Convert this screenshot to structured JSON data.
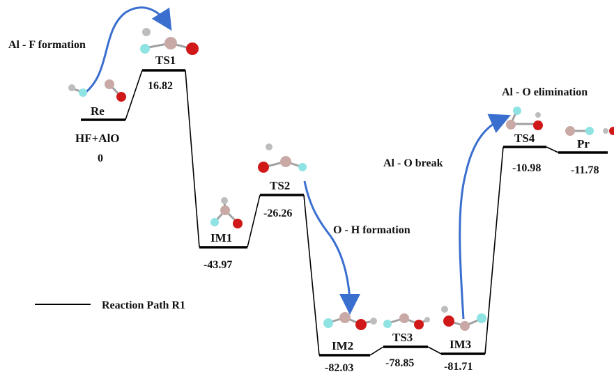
{
  "colors": {
    "path": "#000000",
    "arrow": "#3a6fcf",
    "al_atom": "#c9a9a6",
    "f_atom": "#8fe3e3",
    "o_atom": "#d01818",
    "h_atom": "#bdbdbd",
    "bond": "#a0a0a0"
  },
  "states": [
    {
      "name": "Re",
      "energy": "0",
      "sublabel": "HF+AlO"
    },
    {
      "name": "TS1",
      "energy": "16.82"
    },
    {
      "name": "IM1",
      "energy": "-43.97"
    },
    {
      "name": "TS2",
      "energy": "-26.26"
    },
    {
      "name": "IM2",
      "energy": "-82.03"
    },
    {
      "name": "TS3",
      "energy": "-78.85"
    },
    {
      "name": "IM3",
      "energy": "-81.71"
    },
    {
      "name": "TS4",
      "energy": "-10.98"
    },
    {
      "name": "Pr",
      "energy": "-11.78"
    }
  ],
  "annotations": {
    "al_f_formation": "Al - F formation",
    "o_h_formation": "O - H formation",
    "al_o_break": "Al - O break",
    "al_o_elimination": "Al - O elimination"
  },
  "legend": {
    "label": "Reaction Path R1"
  }
}
